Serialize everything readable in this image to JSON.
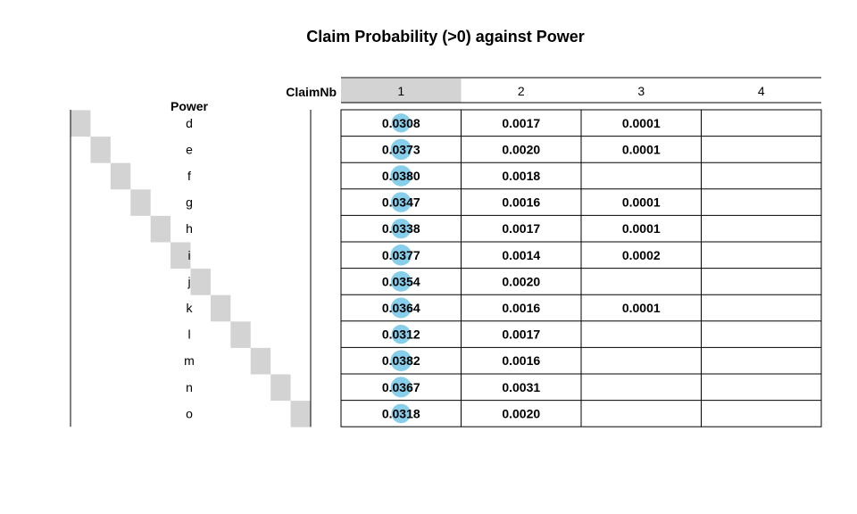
{
  "chart_data": {
    "type": "table",
    "title": "Claim Probability (>0) against Power",
    "row_header": "Power",
    "column_header": "ClaimNb",
    "columns": [
      "1",
      "2",
      "3",
      "4"
    ],
    "highlighted_column": "1",
    "rows": [
      {
        "label": "d",
        "values": [
          "0.0308",
          "0.0017",
          "0.0001",
          ""
        ]
      },
      {
        "label": "e",
        "values": [
          "0.0373",
          "0.0020",
          "0.0001",
          ""
        ]
      },
      {
        "label": "f",
        "values": [
          "0.0380",
          "0.0018",
          "",
          ""
        ]
      },
      {
        "label": "g",
        "values": [
          "0.0347",
          "0.0016",
          "0.0001",
          ""
        ]
      },
      {
        "label": "h",
        "values": [
          "0.0338",
          "0.0017",
          "0.0001",
          ""
        ]
      },
      {
        "label": "i",
        "values": [
          "0.0377",
          "0.0014",
          "0.0002",
          ""
        ]
      },
      {
        "label": "j",
        "values": [
          "0.0354",
          "0.0020",
          "",
          ""
        ]
      },
      {
        "label": "k",
        "values": [
          "0.0364",
          "0.0016",
          "0.0001",
          ""
        ]
      },
      {
        "label": "l",
        "values": [
          "0.0312",
          "0.0017",
          "",
          ""
        ]
      },
      {
        "label": "m",
        "values": [
          "0.0382",
          "0.0016",
          "",
          ""
        ]
      },
      {
        "label": "n",
        "values": [
          "0.0367",
          "0.0031",
          "",
          ""
        ]
      },
      {
        "label": "o",
        "values": [
          "0.0318",
          "0.0020",
          "",
          ""
        ]
      }
    ],
    "colors": {
      "header_highlight": "#d3d3d3",
      "row_highlight": "#d3d3d3",
      "circle_fill": "#87ceeb",
      "grid": "#000000"
    }
  }
}
